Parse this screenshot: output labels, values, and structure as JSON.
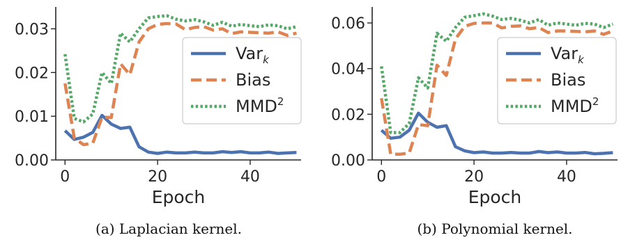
{
  "chart_data": [
    {
      "type": "line",
      "xlabel": "Epoch",
      "ylabel": "",
      "xlim": [
        -2,
        51
      ],
      "ylim": [
        0,
        0.035
      ],
      "xticks": [
        "0",
        "20",
        "40"
      ],
      "xtick_values": [
        0,
        20,
        40
      ],
      "yticks": [
        "0.00",
        "0.01",
        "0.02",
        "0.03"
      ],
      "ytick_values": [
        0,
        0.01,
        0.02,
        0.03
      ],
      "grid": false,
      "legend_position": "center-right",
      "caption": "(a) Laplacian kernel.",
      "x": [
        0,
        2,
        4,
        6,
        8,
        10,
        12,
        14,
        16,
        18,
        20,
        22,
        24,
        26,
        28,
        30,
        32,
        34,
        36,
        38,
        40,
        42,
        44,
        46,
        48,
        50
      ],
      "series": [
        {
          "name": "Var",
          "name_sub": "k",
          "name_sup": "",
          "color": "#4c72b0",
          "dash": "solid",
          "values": [
            0.0067,
            0.0047,
            0.0052,
            0.0063,
            0.0102,
            0.0082,
            0.0072,
            0.0075,
            0.003,
            0.0018,
            0.0015,
            0.0018,
            0.0016,
            0.0016,
            0.0018,
            0.0016,
            0.0016,
            0.0019,
            0.0017,
            0.0019,
            0.0016,
            0.0016,
            0.0018,
            0.0015,
            0.0016,
            0.0017
          ]
        },
        {
          "name": "Bias",
          "name_sub": "",
          "name_sup": "",
          "color": "#dd8452",
          "dash": "dashed",
          "values": [
            0.0175,
            0.005,
            0.0035,
            0.0038,
            0.0098,
            0.0097,
            0.022,
            0.0195,
            0.027,
            0.03,
            0.031,
            0.0312,
            0.0311,
            0.0298,
            0.0303,
            0.0305,
            0.0297,
            0.03,
            0.0289,
            0.0293,
            0.0292,
            0.0291,
            0.029,
            0.0293,
            0.0285,
            0.029
          ]
        },
        {
          "name": "MMD",
          "name_sub": "",
          "name_sup": "2",
          "color": "#55a868",
          "dash": "dotted",
          "values": [
            0.0242,
            0.0095,
            0.0087,
            0.0105,
            0.02,
            0.0175,
            0.029,
            0.027,
            0.03,
            0.0325,
            0.0328,
            0.033,
            0.0322,
            0.0318,
            0.0321,
            0.0316,
            0.0308,
            0.0315,
            0.0306,
            0.031,
            0.0307,
            0.0305,
            0.0309,
            0.0307,
            0.03,
            0.0305
          ]
        }
      ]
    },
    {
      "type": "line",
      "xlabel": "Epoch",
      "ylabel": "",
      "xlim": [
        -2,
        51
      ],
      "ylim": [
        0,
        0.067
      ],
      "xticks": [
        "0",
        "20",
        "40"
      ],
      "xtick_values": [
        0,
        20,
        40
      ],
      "yticks": [
        "0.00",
        "0.02",
        "0.04",
        "0.06"
      ],
      "ytick_values": [
        0,
        0.02,
        0.04,
        0.06
      ],
      "grid": false,
      "legend_position": "center-right",
      "caption": "(b) Polynomial kernel.",
      "x": [
        0,
        2,
        4,
        6,
        8,
        10,
        12,
        14,
        16,
        18,
        20,
        22,
        24,
        26,
        28,
        30,
        32,
        34,
        36,
        38,
        40,
        42,
        44,
        46,
        48,
        50
      ],
      "series": [
        {
          "name": "Var",
          "name_sub": "k",
          "name_sup": "",
          "color": "#4c72b0",
          "dash": "solid",
          "values": [
            0.013,
            0.0095,
            0.01,
            0.013,
            0.0205,
            0.0165,
            0.0143,
            0.015,
            0.0058,
            0.004,
            0.0032,
            0.0035,
            0.003,
            0.003,
            0.0033,
            0.003,
            0.003,
            0.0037,
            0.0032,
            0.0035,
            0.003,
            0.003,
            0.0033,
            0.0027,
            0.0029,
            0.0032
          ]
        },
        {
          "name": "Bias",
          "name_sub": "",
          "name_sup": "",
          "color": "#dd8452",
          "dash": "dashed",
          "values": [
            0.027,
            0.0025,
            0.0025,
            0.003,
            0.0155,
            0.015,
            0.0415,
            0.037,
            0.053,
            0.0585,
            0.0598,
            0.06,
            0.06,
            0.0578,
            0.0585,
            0.0587,
            0.0575,
            0.058,
            0.0558,
            0.0565,
            0.0565,
            0.0563,
            0.0561,
            0.0565,
            0.055,
            0.0565
          ]
        },
        {
          "name": "MMD",
          "name_sub": "",
          "name_sup": "2",
          "color": "#55a868",
          "dash": "dotted",
          "values": [
            0.041,
            0.012,
            0.012,
            0.016,
            0.036,
            0.0315,
            0.0555,
            0.052,
            0.058,
            0.0625,
            0.0632,
            0.064,
            0.063,
            0.0615,
            0.062,
            0.0612,
            0.06,
            0.0615,
            0.059,
            0.06,
            0.0595,
            0.059,
            0.0598,
            0.0595,
            0.058,
            0.0595
          ]
        }
      ]
    }
  ]
}
